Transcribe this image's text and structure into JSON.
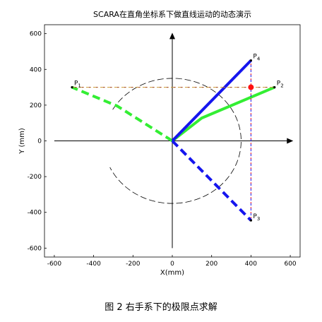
{
  "chart_data": {
    "type": "line",
    "title": "SCARA在直角坐标系下做直线运动的动态演示",
    "xlabel": "X(mm)",
    "ylabel": "Y (mm)",
    "xlim": [
      -650,
      650
    ],
    "ylim": [
      -650,
      650
    ],
    "xticks": [
      -600,
      -400,
      -200,
      0,
      200,
      400,
      600
    ],
    "yticks": [
      -600,
      -400,
      -200,
      0,
      200,
      400,
      600
    ],
    "grid": false,
    "colors": {
      "green": "#33ee33",
      "blue": "#1515ee",
      "red": "#ff1111",
      "dash_olive": "#cc9933",
      "dash_brown": "#a04040",
      "axis": "#000000"
    },
    "points": [
      {
        "name": "P",
        "sub": "1",
        "x": -510,
        "y": 300
      },
      {
        "name": "P",
        "sub": "2",
        "x": 520,
        "y": 300
      },
      {
        "name": "P",
        "sub": "3",
        "x": 400,
        "y": -445
      },
      {
        "name": "P",
        "sub": "4",
        "x": 400,
        "y": 450
      }
    ],
    "series": [
      {
        "style": "green-solid",
        "points": [
          [
            0,
            0
          ],
          [
            150,
            128
          ],
          [
            520,
            300
          ]
        ]
      },
      {
        "style": "green-dashed",
        "points": [
          [
            0,
            0
          ],
          [
            -280,
            195
          ],
          [
            -510,
            300
          ]
        ]
      },
      {
        "style": "blue-solid",
        "points": [
          [
            0,
            0
          ],
          [
            400,
            450
          ]
        ]
      },
      {
        "style": "blue-dashed",
        "points": [
          [
            0,
            0
          ],
          [
            400,
            -445
          ]
        ]
      },
      {
        "style": "line-dashed",
        "points": [
          [
            -510,
            300
          ],
          [
            520,
            300
          ]
        ]
      },
      {
        "style": "vertical-dashed",
        "points": [
          [
            400,
            -445
          ],
          [
            400,
            450
          ]
        ]
      }
    ],
    "workspace_arc": {
      "cx": 0,
      "cy": 0,
      "r": 350
    },
    "marker": {
      "x": 400,
      "y": 300
    }
  },
  "caption": {
    "prefix": "图 2",
    "text": "右手系下的极限点求解"
  }
}
